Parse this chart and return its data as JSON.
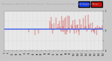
{
  "title_line1": "Milwaukee Weather Wind Direction  Normalized and Median  (24 Hours) (New)",
  "title_bg_color": "#222222",
  "title_text_color": "#aaaaaa",
  "fig_bg_color": "#c8c8c8",
  "plot_bg_color": "#e8e8e8",
  "median_value": 0.55,
  "median_color": "#2244ee",
  "data_color": "#cc1111",
  "ylim": [
    0.0,
    1.0
  ],
  "xlim": [
    0,
    144
  ],
  "num_points": 144,
  "legend_blue_color": "#2244ee",
  "legend_red_color": "#cc1111",
  "grid_color": "#bbbbbb",
  "ytick_values": [
    0.0,
    0.25,
    0.5,
    0.75,
    1.0
  ],
  "ytick_labels": [
    "0",
    "",
    ".5",
    "",
    "1"
  ],
  "title_fontsize": 2.5,
  "tick_fontsize": 1.8
}
